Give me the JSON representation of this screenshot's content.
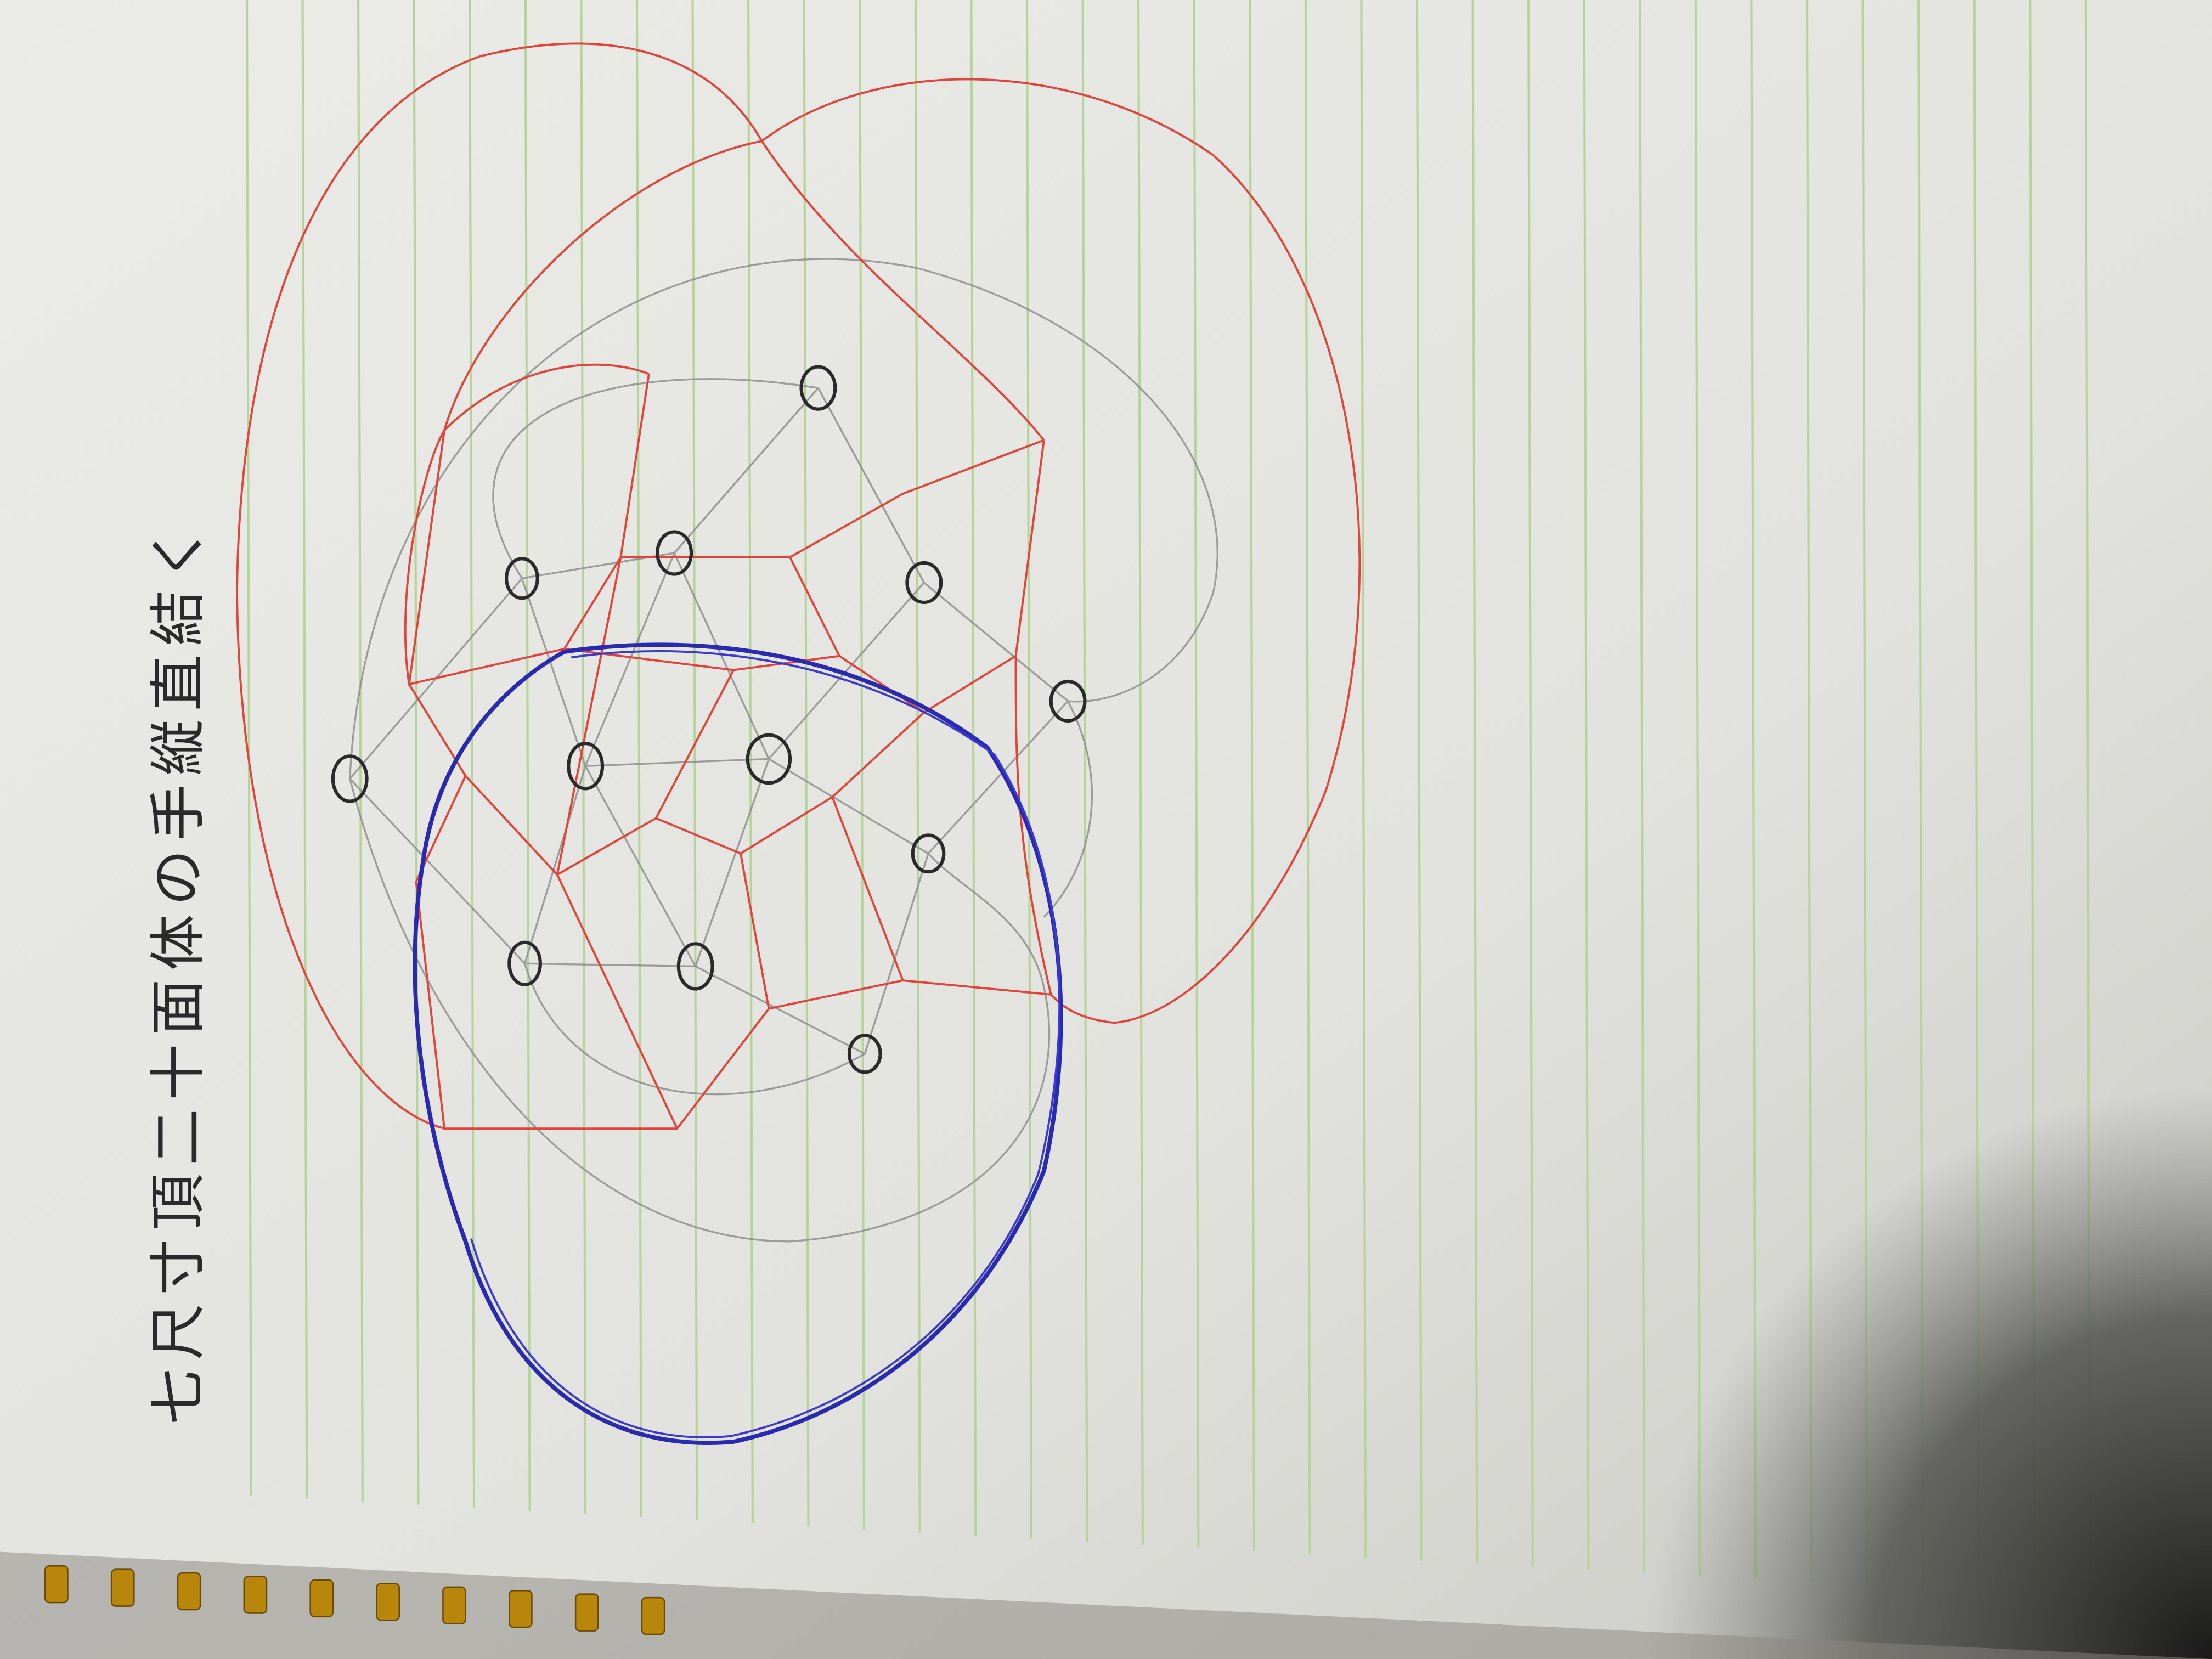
{
  "page": {
    "handwriting": "七尺寸頂二十面体の手縦直結く"
  }
}
